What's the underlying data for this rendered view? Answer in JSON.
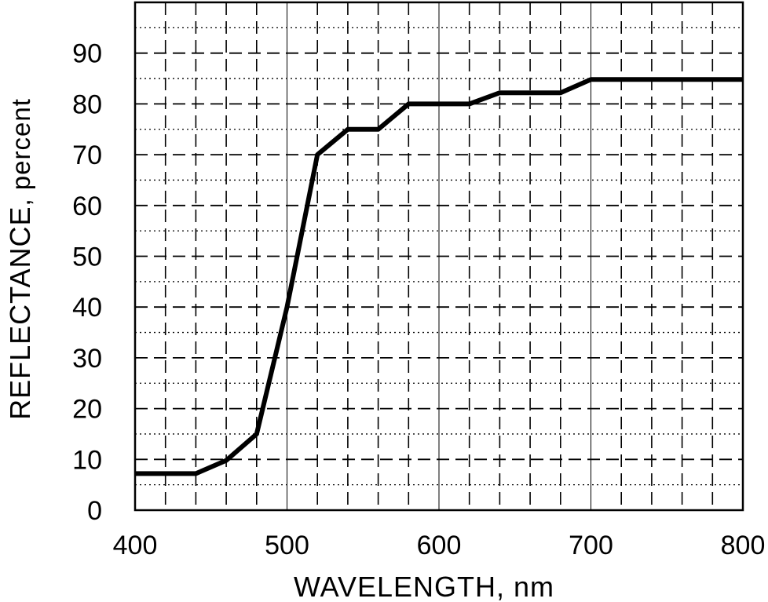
{
  "chart_data": {
    "type": "line",
    "title": "",
    "xlabel": "WAVELENGTH, nm",
    "ylabel_main": "REFLECTANCE",
    "ylabel_unit": ", percent",
    "xlim": [
      400,
      800
    ],
    "ylim": [
      0,
      100
    ],
    "x_ticks": [
      400,
      500,
      600,
      700,
      800
    ],
    "y_ticks": [
      0,
      10,
      20,
      30,
      40,
      50,
      60,
      70,
      80,
      90
    ],
    "grid": {
      "solid_x": [
        500,
        600,
        700
      ],
      "dashed_x": [
        420,
        440,
        460,
        480,
        520,
        540,
        560,
        580,
        620,
        640,
        660,
        680,
        720,
        740,
        760,
        780
      ],
      "dashed_y": [
        10,
        20,
        30,
        40,
        50,
        60,
        70,
        80,
        90
      ],
      "dotted_y": [
        5,
        15,
        25,
        35,
        45,
        55,
        65,
        75,
        85,
        95
      ]
    },
    "legend": "none",
    "series": [
      {
        "x": [
          400,
          440,
          460,
          480,
          500,
          520,
          540,
          560,
          580,
          600,
          620,
          640,
          660,
          680,
          700,
          720,
          740,
          760,
          780,
          800
        ],
        "values": [
          7.2,
          7.2,
          9.8,
          15,
          40,
          70,
          75,
          75,
          80,
          80,
          80,
          82.2,
          82.2,
          82.2,
          84.8,
          84.8,
          84.8,
          84.8,
          84.8,
          84.8
        ]
      }
    ]
  }
}
